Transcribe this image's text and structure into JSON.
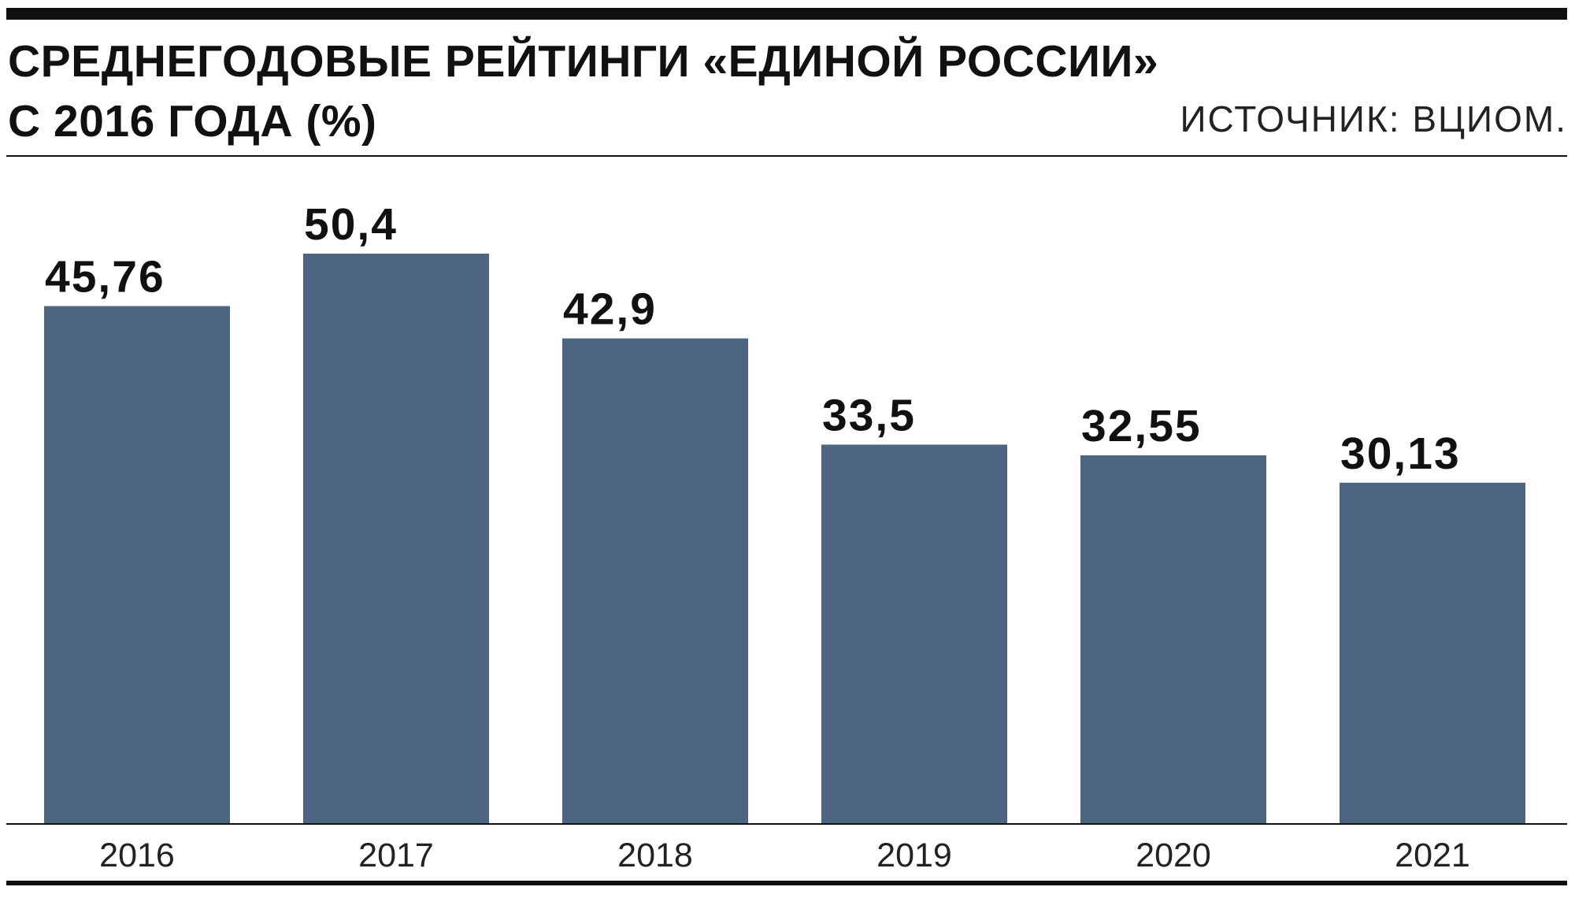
{
  "chart_data": {
    "type": "bar",
    "title": "СРЕДНЕГОДОВЫЕ РЕЙТИНГИ «ЕДИНОЙ РОССИИ»\nС 2016 ГОДА (%)",
    "source": "ИСТОЧНИК: ВЦИОМ.",
    "categories": [
      "2016",
      "2017",
      "2018",
      "2019",
      "2020",
      "2021"
    ],
    "values": [
      45.76,
      50.4,
      42.9,
      33.5,
      32.55,
      30.13
    ],
    "value_labels": [
      "45,76",
      "50,4",
      "42,9",
      "33,5",
      "32,55",
      "30,13"
    ],
    "color": "#4d6580"
  }
}
